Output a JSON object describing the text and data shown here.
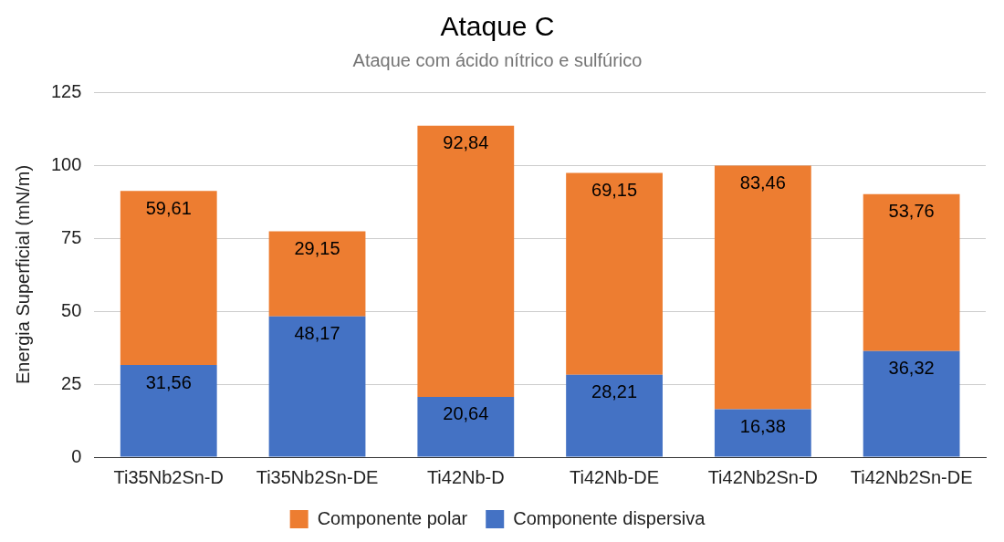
{
  "chart_data": {
    "type": "bar",
    "title": "Ataque C",
    "subtitle": "Ataque com ácido nítrico e sulfúrico",
    "ylabel": "Energia Superficial (mN/m)",
    "categories": [
      "Ti35Nb2Sn-D",
      "Ti35Nb2Sn-DE",
      "Ti42Nb-D",
      "Ti42Nb-DE",
      "Ti42Nb2Sn-D",
      "Ti42Nb2Sn-DE"
    ],
    "stacked": true,
    "series": [
      {
        "name": "Componente dispersiva",
        "color": "#4472c4",
        "values": [
          31.56,
          48.17,
          20.64,
          28.21,
          16.38,
          36.32
        ],
        "value_labels": [
          "31,56",
          "48,17",
          "20,64",
          "28,21",
          "16,38",
          "36,32"
        ]
      },
      {
        "name": "Componente polar",
        "color": "#ed7d31",
        "values": [
          59.61,
          29.15,
          92.84,
          69.15,
          83.46,
          53.76
        ],
        "value_labels": [
          "59,61",
          "29,15",
          "92,84",
          "69,15",
          "83,46",
          "53,76"
        ]
      }
    ],
    "ylim": [
      0,
      125
    ],
    "yticks": [
      0,
      25,
      50,
      75,
      100,
      125
    ],
    "grid": "y",
    "legend": "bottom"
  }
}
